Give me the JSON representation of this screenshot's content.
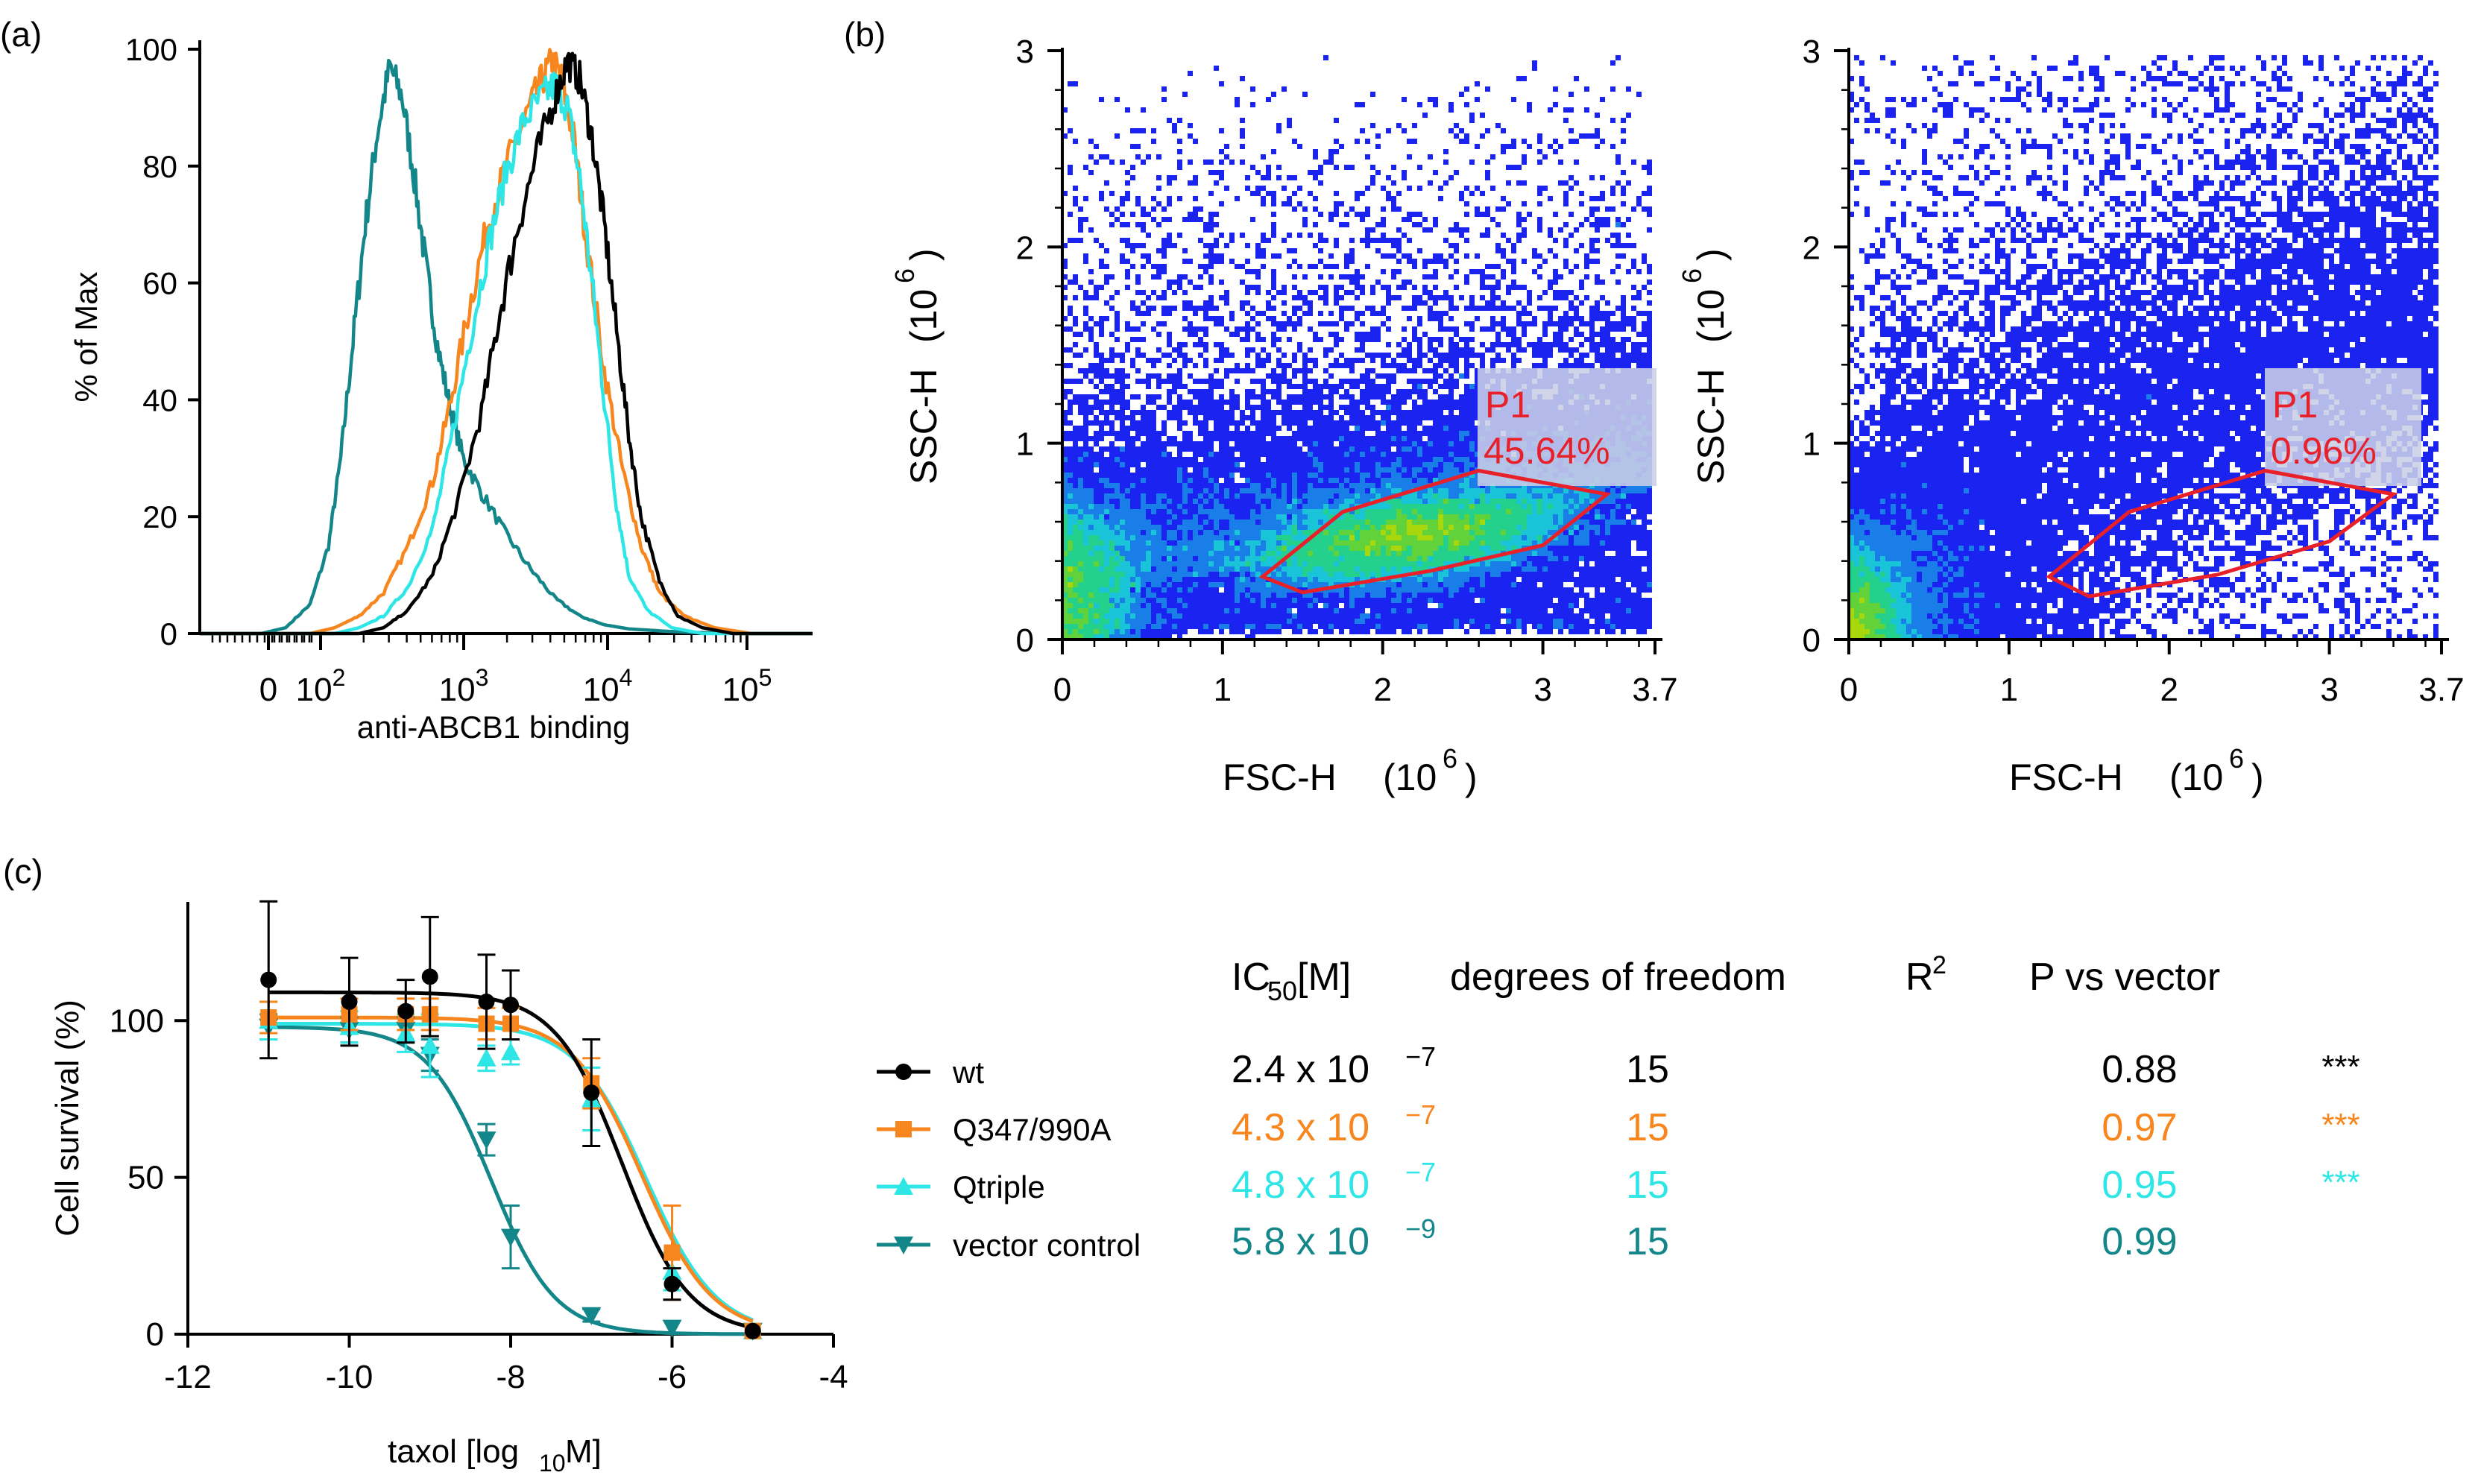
{
  "panels": {
    "a": {
      "label": "(a)"
    },
    "b": {
      "label": "(b)"
    },
    "c": {
      "label": "(c)"
    }
  },
  "chart_data": [
    {
      "id": "a",
      "type": "line",
      "title": "",
      "xlabel": "anti-ABCB1 binding",
      "ylabel": "% of Max",
      "xscale": "biexponential",
      "xticks": [
        "0",
        "10^2",
        "10^3",
        "10^4",
        "10^5"
      ],
      "yticks": [
        "0",
        "20",
        "40",
        "60",
        "80",
        "100"
      ],
      "ylim": [
        0,
        100
      ],
      "series": [
        {
          "name": "vector control",
          "color": "#13868a",
          "x": [
            0.0,
            0.1,
            0.14,
            0.18,
            0.21,
            0.23,
            0.25,
            0.27,
            0.29,
            0.31,
            0.33,
            0.35,
            0.37,
            0.39,
            0.41,
            0.43,
            0.46,
            0.5,
            0.54,
            0.58,
            0.62,
            0.66,
            0.7,
            0.76,
            0.8,
            0.9,
            1.0
          ],
          "y": [
            0,
            0,
            1,
            5,
            15,
            30,
            50,
            70,
            86,
            97,
            92,
            78,
            62,
            48,
            38,
            30,
            24,
            17,
            11,
            6,
            3,
            1.5,
            0.8,
            0.4,
            0.2,
            0,
            0
          ]
        },
        {
          "name": "Q347/990A",
          "color": "#f7861e",
          "x": [
            0.0,
            0.18,
            0.22,
            0.26,
            0.3,
            0.34,
            0.38,
            0.41,
            0.44,
            0.47,
            0.5,
            0.53,
            0.555,
            0.575,
            0.59,
            0.61,
            0.63,
            0.66,
            0.69,
            0.72,
            0.75,
            0.79,
            0.84,
            0.9,
            1.0
          ],
          "y": [
            0,
            0,
            1,
            3,
            7,
            15,
            26,
            40,
            56,
            70,
            80,
            88,
            94,
            98,
            95,
            85,
            68,
            45,
            28,
            15,
            7,
            3,
            1,
            0,
            0
          ]
        },
        {
          "name": "Qtriple",
          "color": "#2ee6e6",
          "x": [
            0.0,
            0.22,
            0.26,
            0.3,
            0.34,
            0.38,
            0.41,
            0.44,
            0.47,
            0.5,
            0.53,
            0.56,
            0.58,
            0.6,
            0.62,
            0.64,
            0.66,
            0.68,
            0.7,
            0.73,
            0.77,
            0.82,
            1.0
          ],
          "y": [
            0,
            0,
            1,
            3,
            8,
            18,
            33,
            50,
            66,
            79,
            88,
            92,
            94,
            90,
            78,
            60,
            40,
            22,
            10,
            4,
            1,
            0,
            0
          ]
        },
        {
          "name": "wt",
          "color": "#000000",
          "x": [
            0.0,
            0.26,
            0.3,
            0.34,
            0.38,
            0.42,
            0.46,
            0.49,
            0.52,
            0.55,
            0.58,
            0.6,
            0.62,
            0.64,
            0.66,
            0.68,
            0.7,
            0.72,
            0.75,
            0.78,
            0.82,
            0.87,
            1.0
          ],
          "y": [
            0,
            0,
            1,
            4,
            10,
            22,
            38,
            55,
            70,
            82,
            92,
            98,
            95,
            85,
            70,
            52,
            34,
            20,
            9,
            3,
            1,
            0,
            0
          ]
        }
      ]
    },
    {
      "id": "b1",
      "type": "scatter",
      "xlabel": "FSC-H",
      "ylabel": "SSC-H",
      "xunit": "(10",
      "yunit": "(10",
      "unitexp": "6",
      "unitclose": ")",
      "xlim": [
        0,
        3.7
      ],
      "ylim": [
        0,
        3
      ],
      "xticks": [
        "0",
        "1",
        "2",
        "3",
        "3.7"
      ],
      "yticks": [
        "0",
        "1",
        "2",
        "3"
      ],
      "gate": {
        "name": "P1",
        "percent": "45.64%",
        "polygon": [
          [
            1.25,
            0.32
          ],
          [
            1.5,
            0.24
          ],
          [
            2.3,
            0.35
          ],
          [
            3.0,
            0.48
          ],
          [
            3.4,
            0.74
          ],
          [
            2.6,
            0.86
          ],
          [
            1.75,
            0.65
          ]
        ]
      },
      "density_center": [
        2.2,
        0.45
      ],
      "event_count_label": "dense"
    },
    {
      "id": "b2",
      "type": "scatter",
      "xlabel": "FSC-H",
      "ylabel": "SSC-H",
      "xunit": "(10",
      "yunit": "(10",
      "unitexp": "6",
      "unitclose": ")",
      "xlim": [
        0,
        3.7
      ],
      "ylim": [
        0,
        3
      ],
      "xticks": [
        "0",
        "1",
        "2",
        "3",
        "3.7"
      ],
      "yticks": [
        "0",
        "1",
        "2",
        "3"
      ],
      "gate": {
        "name": "P1",
        "percent": "0.96%",
        "polygon": [
          [
            1.25,
            0.32
          ],
          [
            1.5,
            0.22
          ],
          [
            2.3,
            0.33
          ],
          [
            3.0,
            0.5
          ],
          [
            3.4,
            0.74
          ],
          [
            2.6,
            0.86
          ],
          [
            1.75,
            0.65
          ]
        ]
      },
      "density_center": [
        0.1,
        0.15
      ],
      "event_count_label": "sparse"
    },
    {
      "id": "c",
      "type": "scatter",
      "xlabel_main": "taxol [log",
      "xlabel_sub": "10",
      "xlabel_end": " M]",
      "ylabel": "Cell survival (%)",
      "xlim": [
        -12,
        -4
      ],
      "ylim": [
        0,
        135
      ],
      "xticks": [
        -12,
        -10,
        -8,
        -6,
        -4
      ],
      "xticklabels": [
        "-12",
        "-10",
        "-8",
        "-6",
        "-4"
      ],
      "yticks": [
        0,
        50,
        100
      ],
      "yticklabels": [
        "0",
        "50",
        "100"
      ],
      "series": [
        {
          "name": "wt",
          "color": "#000000",
          "marker": "circle",
          "x": [
            -11,
            -10,
            -9.3,
            -9,
            -8.3,
            -8,
            -7,
            -6,
            -5
          ],
          "y": [
            113,
            106,
            103,
            114,
            106,
            105,
            77,
            16,
            1
          ],
          "err": [
            25,
            14,
            10,
            19,
            15,
            11,
            17,
            5,
            1
          ],
          "fit": {
            "top": 109,
            "bottom": 0,
            "logIC50": -6.62,
            "hill": 1.05
          }
        },
        {
          "name": "Q347/990A",
          "color": "#f7861e",
          "marker": "square",
          "x": [
            -11,
            -10,
            -9.3,
            -9,
            -8.3,
            -8,
            -7,
            -6,
            -5
          ],
          "y": [
            101,
            102,
            102,
            102,
            99,
            99,
            80,
            26,
            1
          ],
          "err": [
            5,
            5,
            5,
            5,
            5,
            5,
            8,
            15,
            1
          ],
          "fit": {
            "top": 101,
            "bottom": 0,
            "logIC50": -6.37,
            "hill": 1.0
          }
        },
        {
          "name": "Qtriple",
          "color": "#2ee6e6",
          "marker": "triangle-up",
          "x": [
            -11,
            -10,
            -9.3,
            -9,
            -8.3,
            -8,
            -7,
            -6,
            -5
          ],
          "y": [
            100,
            98,
            96,
            92,
            88,
            90,
            75,
            20,
            1
          ],
          "err": [
            6,
            5,
            6,
            10,
            4,
            4,
            10,
            6,
            1
          ],
          "fit": {
            "top": 99,
            "bottom": 0,
            "logIC50": -6.32,
            "hill": 1.0
          }
        },
        {
          "name": "vector control",
          "color": "#13868a",
          "marker": "triangle-down",
          "x": [
            -11,
            -10,
            -9.3,
            -9,
            -8.3,
            -8,
            -7,
            -6,
            -5
          ],
          "y": [
            98,
            97,
            97,
            89,
            62,
            31,
            6,
            2,
            1
          ],
          "err": [
            4,
            4,
            4,
            5,
            5,
            10,
            2,
            1,
            1
          ],
          "fit": {
            "top": 98,
            "bottom": 0,
            "logIC50": -8.24,
            "hill": 1.1
          }
        }
      ]
    }
  ],
  "stats_table": {
    "headers": {
      "ic50_main": "IC",
      "ic50_sub": "50",
      "ic50_end": " [M]",
      "dof": "degrees of freedom",
      "r2_main": "R",
      "r2_sup": "2",
      "p": "P vs vector"
    },
    "rows": [
      {
        "color": "#000000",
        "ic_base": "2.4 x 10",
        "ic_exp": "−7",
        "dof": "15",
        "r2": "0.88",
        "p": "***"
      },
      {
        "color": "#f7861e",
        "ic_base": "4.3 x 10",
        "ic_exp": "−7",
        "dof": "15",
        "r2": "0.97",
        "p": "***"
      },
      {
        "color": "#2ee6e6",
        "ic_base": "4.8 x 10",
        "ic_exp": "−7",
        "dof": "15",
        "r2": "0.95",
        "p": "***"
      },
      {
        "color": "#13868a",
        "ic_base": "5.8 x 10",
        "ic_exp": "−9",
        "dof": "15",
        "r2": "0.99",
        "p": ""
      }
    ]
  }
}
